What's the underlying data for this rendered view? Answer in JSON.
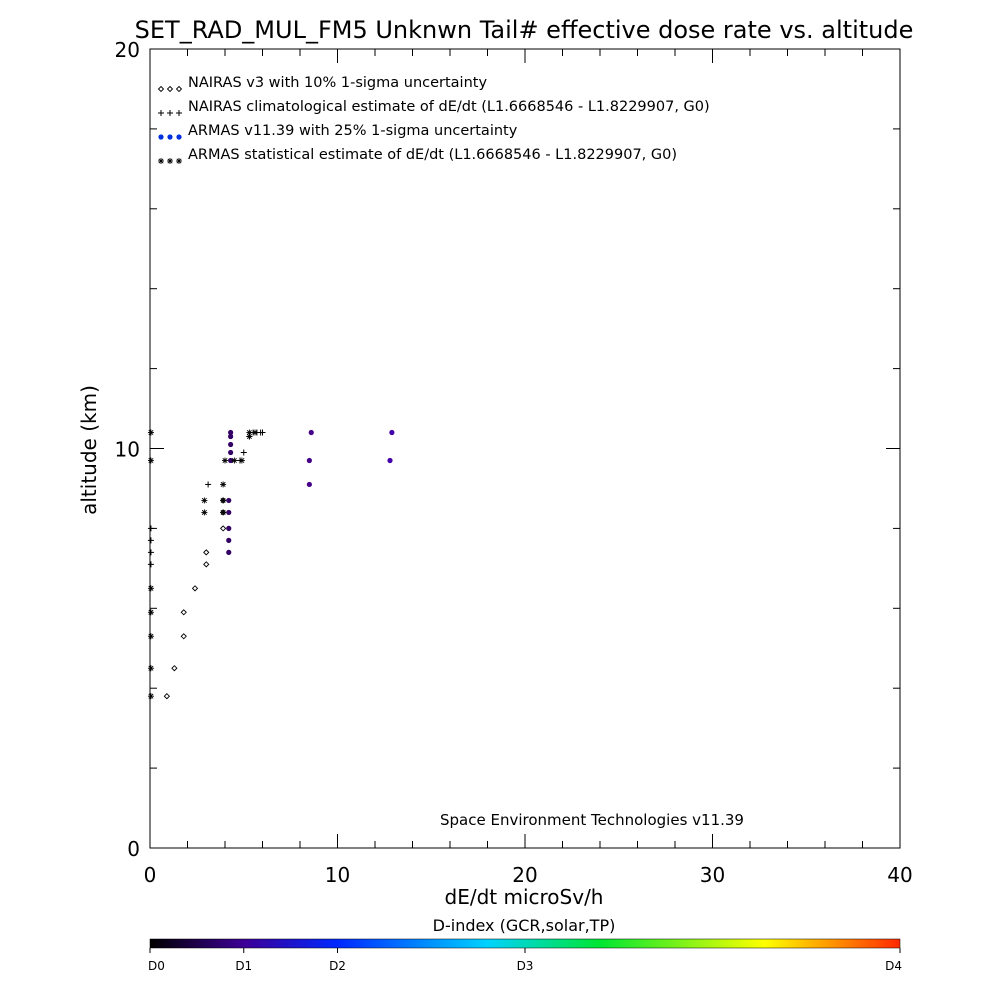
{
  "chart_data": {
    "type": "scatter",
    "title": "SET_RAD_MUL_FM5 Unknwn Tail#  effective dose rate vs. altitude",
    "xlabel": "dE/dt microSv/h",
    "ylabel": "altitude (km)",
    "xlim": [
      0,
      40
    ],
    "ylim": [
      0,
      20
    ],
    "x_ticks": [
      "0",
      "10",
      "20",
      "30",
      "40"
    ],
    "y_ticks": [
      "0",
      "10",
      "20"
    ],
    "grid": false,
    "legend_position": "top-left",
    "annotation": "Space Environment Technologies v11.39",
    "series": [
      {
        "name": "NAIRAS v3 with 10% 1-sigma uncertainty",
        "marker": "diamond",
        "color": "#000000",
        "points": [
          [
            0.9,
            3.8
          ],
          [
            1.3,
            4.5
          ],
          [
            1.8,
            5.3
          ],
          [
            1.8,
            5.9
          ],
          [
            2.4,
            6.5
          ],
          [
            3.0,
            7.1
          ],
          [
            3.0,
            7.4
          ],
          [
            3.9,
            8.0
          ],
          [
            3.9,
            8.4
          ],
          [
            3.9,
            8.7
          ]
        ]
      },
      {
        "name": "NAIRAS climatological estimate of dE/dt (L1.6668546 - L1.8229907, G0)",
        "marker": "plus",
        "color": "#000000",
        "points": [
          [
            0.05,
            7.1
          ],
          [
            0.05,
            7.4
          ],
          [
            0.05,
            7.7
          ],
          [
            0.05,
            8.0
          ],
          [
            3.1,
            9.1
          ],
          [
            4.8,
            9.7
          ],
          [
            5.0,
            9.9
          ],
          [
            5.3,
            10.3
          ],
          [
            5.5,
            10.4
          ],
          [
            5.7,
            10.4
          ],
          [
            5.9,
            10.4
          ],
          [
            6.0,
            10.4
          ]
        ]
      },
      {
        "name": "ARMAS v11.39 with 25% 1-sigma uncertainty",
        "marker": "dot",
        "color": "#0030e0",
        "points": [
          [
            4.2,
            7.4
          ],
          [
            4.2,
            7.7
          ],
          [
            4.2,
            8.0
          ],
          [
            4.2,
            8.4
          ],
          [
            4.2,
            8.7
          ],
          [
            4.3,
            9.7
          ],
          [
            4.3,
            9.9
          ],
          [
            4.3,
            10.1
          ],
          [
            4.3,
            10.3
          ],
          [
            4.3,
            10.4
          ],
          [
            8.5,
            9.1
          ],
          [
            8.5,
            9.7
          ],
          [
            8.6,
            10.4
          ],
          [
            12.8,
            9.7
          ],
          [
            12.9,
            10.4
          ]
        ],
        "colors": [
          "#330066",
          "#330066",
          "#330066",
          "#330066",
          "#330066",
          "#330066",
          "#330066",
          "#330066",
          "#330066",
          "#330066",
          "#440088",
          "#440088",
          "#440088",
          "#4400aa",
          "#4400aa"
        ]
      },
      {
        "name": "ARMAS statistical estimate of dE/dt (L1.6668546 - L1.8229907, G0)",
        "marker": "asterisk",
        "color": "#000000",
        "points": [
          [
            0.05,
            3.8
          ],
          [
            0.05,
            4.5
          ],
          [
            0.05,
            5.3
          ],
          [
            0.05,
            5.9
          ],
          [
            0.05,
            6.5
          ],
          [
            0.05,
            9.7
          ],
          [
            0.05,
            10.4
          ],
          [
            2.9,
            8.4
          ],
          [
            2.9,
            8.7
          ],
          [
            3.9,
            8.4
          ],
          [
            3.9,
            8.7
          ],
          [
            3.9,
            9.1
          ],
          [
            4.0,
            9.7
          ],
          [
            4.5,
            9.7
          ],
          [
            4.9,
            9.7
          ],
          [
            5.3,
            10.3
          ],
          [
            5.3,
            10.4
          ],
          [
            5.6,
            10.4
          ]
        ]
      }
    ],
    "colorbar": {
      "title": "D-index (GCR,solar,TP)",
      "labels": [
        "D0",
        "D1",
        "D2",
        "D3",
        "D4"
      ],
      "label_positions": [
        0,
        0.125,
        0.25,
        0.5,
        1.0
      ],
      "stops": [
        "#000000",
        "#3c0096",
        "#0028ff",
        "#00d2ff",
        "#00e632",
        "#ffff00",
        "#ff2800"
      ]
    }
  }
}
